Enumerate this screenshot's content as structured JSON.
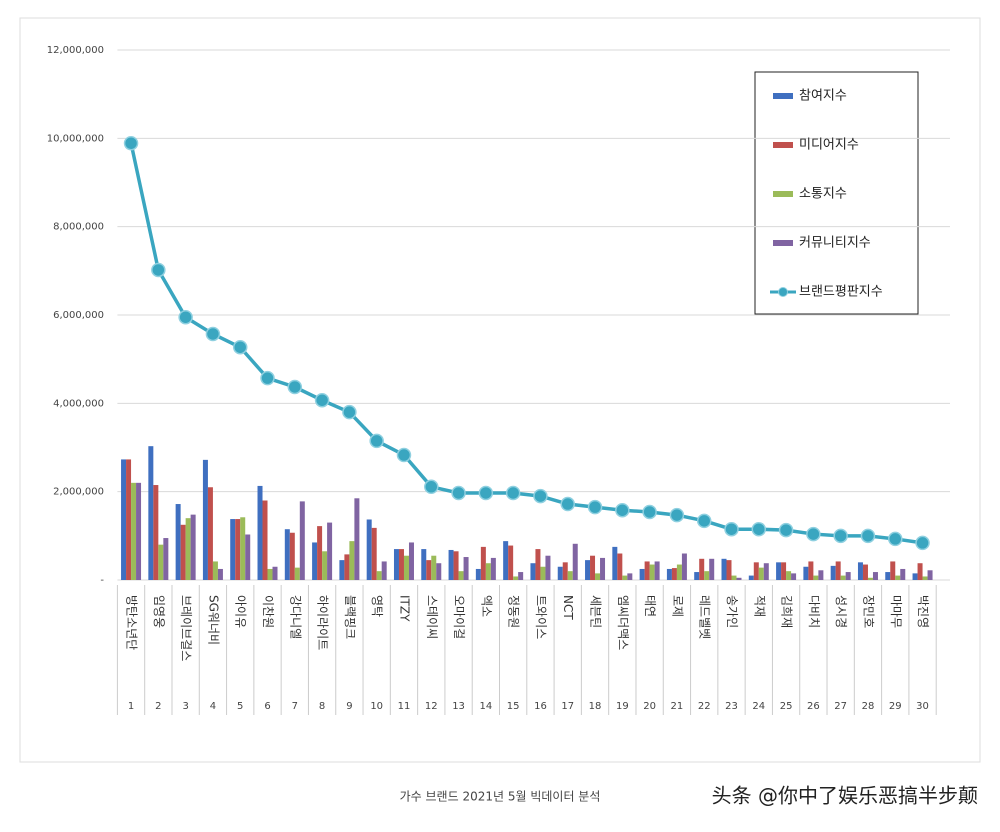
{
  "chart_data": {
    "type": "bar",
    "categories": [
      "방탄소년단",
      "임영웅",
      "브레이브걸스",
      "SG워너비",
      "아이유",
      "이찬원",
      "강다니엘",
      "하이라이트",
      "블랙핑크",
      "영탁",
      "ITZY",
      "스테이씨",
      "오마이걸",
      "엑소",
      "정동원",
      "트와이스",
      "NCT",
      "세븐틴",
      "엠씨더맥스",
      "태연",
      "로제",
      "레드벨벳",
      "송가인",
      "적재",
      "김희재",
      "다비치",
      "성시경",
      "장민호",
      "마마무",
      "박진영"
    ],
    "ranks": [
      1,
      2,
      3,
      4,
      5,
      6,
      7,
      8,
      9,
      10,
      11,
      12,
      13,
      14,
      15,
      16,
      17,
      18,
      19,
      20,
      21,
      22,
      23,
      24,
      25,
      26,
      27,
      28,
      29,
      30
    ],
    "series": [
      {
        "name": "참여지수",
        "type": "bar",
        "color": "#3f6fc0",
        "values": [
          2730000,
          3030000,
          1720000,
          2720000,
          1380000,
          2130000,
          1150000,
          850000,
          450000,
          1370000,
          700000,
          700000,
          680000,
          250000,
          880000,
          380000,
          300000,
          450000,
          750000,
          250000,
          250000,
          180000,
          480000,
          100000,
          400000,
          300000,
          320000,
          400000,
          180000,
          150000
        ]
      },
      {
        "name": "미디어지수",
        "type": "bar",
        "color": "#c0504d",
        "values": [
          2730000,
          2150000,
          1250000,
          2100000,
          1380000,
          1800000,
          1070000,
          1220000,
          580000,
          1180000,
          700000,
          450000,
          650000,
          750000,
          780000,
          700000,
          400000,
          550000,
          600000,
          420000,
          270000,
          480000,
          450000,
          400000,
          400000,
          420000,
          420000,
          350000,
          420000,
          380000
        ]
      },
      {
        "name": "소통지수",
        "type": "bar",
        "color": "#9bbb59",
        "values": [
          2200000,
          800000,
          1400000,
          420000,
          1420000,
          250000,
          280000,
          650000,
          880000,
          200000,
          550000,
          550000,
          200000,
          380000,
          80000,
          300000,
          200000,
          150000,
          100000,
          350000,
          350000,
          200000,
          100000,
          280000,
          200000,
          100000,
          100000,
          50000,
          100000,
          80000
        ]
      },
      {
        "name": "커뮤니티지수",
        "type": "bar",
        "color": "#8064a2",
        "values": [
          2200000,
          950000,
          1480000,
          250000,
          1030000,
          300000,
          1780000,
          1300000,
          1850000,
          420000,
          850000,
          380000,
          520000,
          500000,
          180000,
          550000,
          820000,
          500000,
          150000,
          420000,
          600000,
          480000,
          50000,
          380000,
          150000,
          220000,
          180000,
          180000,
          250000,
          220000
        ]
      },
      {
        "name": "브랜드평판지수",
        "type": "line",
        "color": "#3aa6c0",
        "values": [
          9890000,
          7020000,
          5950000,
          5570000,
          5270000,
          4570000,
          4370000,
          4070000,
          3800000,
          3150000,
          2830000,
          2110000,
          1970000,
          1970000,
          1970000,
          1900000,
          1720000,
          1650000,
          1580000,
          1540000,
          1470000,
          1340000,
          1150000,
          1150000,
          1130000,
          1040000,
          1000000,
          1000000,
          930000,
          840000
        ]
      }
    ],
    "ylim": [
      0,
      12000000
    ],
    "yticks": [
      {
        "value": 0,
        "label": "-"
      },
      {
        "value": 2000000,
        "label": "2,000,000"
      },
      {
        "value": 4000000,
        "label": "4,000,000"
      },
      {
        "value": 6000000,
        "label": "6,000,000"
      },
      {
        "value": 8000000,
        "label": "8,000,000"
      },
      {
        "value": 10000000,
        "label": "10,000,000"
      },
      {
        "value": 12000000,
        "label": "12,000,000"
      }
    ],
    "grid": true,
    "legend": "upper right",
    "source": "가수 브랜드 2021년 5월 빅데이터 분석",
    "watermark": "头条 @你中了娱乐恶搞半步颠"
  }
}
